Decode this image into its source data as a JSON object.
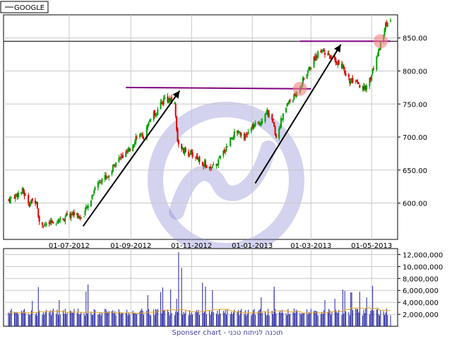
{
  "chart_data": {
    "type": "candlestick",
    "ticker": "GOOGLE",
    "footer": "Sponser chart - תוכנה לניתוח טכני",
    "colors": {
      "up": "#00a000",
      "down": "#e00000",
      "volume": "#2020a0",
      "volume_ma": "#e0a020",
      "trend_line": "#800080",
      "arrow": "#000000",
      "highlight": "#f08080",
      "hline": "#000000",
      "grid": "#c8c8c8",
      "watermark": "#8080d0"
    },
    "price_axis": {
      "ticks": [
        "600.00",
        "650.00",
        "700.00",
        "750.00",
        "800.00",
        "850.00"
      ],
      "tick_values": [
        600,
        650,
        700,
        750,
        800,
        850
      ],
      "range": [
        545,
        885
      ]
    },
    "date_axis": {
      "labels": [
        "01-07-2012",
        "01-09-2012",
        "01-11-2012",
        "01-01-2013",
        "01-03-2013",
        "01-05-2013"
      ],
      "label_dates": [
        "2012-07-01",
        "2012-09-01",
        "2012-11-01",
        "2013-01-01",
        "2013-03-01",
        "2013-05-01"
      ],
      "start": "2012-05-01",
      "end": "2013-05-20"
    },
    "volume_axis": {
      "ticks": [
        "2,000,000",
        "4,000,000",
        "6,000,000",
        "8,000,000",
        "10,000,000",
        "12,000,000"
      ],
      "tick_values": [
        2000000,
        4000000,
        6000000,
        8000000,
        10000000,
        12000000
      ],
      "range": [
        0,
        13000000
      ]
    },
    "close_path": [
      [
        "2012-05-01",
        605
      ],
      [
        "2012-05-08",
        612
      ],
      [
        "2012-05-15",
        618
      ],
      [
        "2012-05-22",
        600
      ],
      [
        "2012-05-29",
        605
      ],
      [
        "2012-06-01",
        572
      ],
      [
        "2012-06-08",
        565
      ],
      [
        "2012-06-15",
        572
      ],
      [
        "2012-06-22",
        575
      ],
      [
        "2012-06-29",
        580
      ],
      [
        "2012-07-06",
        585
      ],
      [
        "2012-07-13",
        577
      ],
      [
        "2012-07-20",
        595
      ],
      [
        "2012-07-27",
        625
      ],
      [
        "2012-08-03",
        638
      ],
      [
        "2012-08-10",
        642
      ],
      [
        "2012-08-17",
        664
      ],
      [
        "2012-08-24",
        670
      ],
      [
        "2012-08-31",
        680
      ],
      [
        "2012-09-07",
        703
      ],
      [
        "2012-09-14",
        700
      ],
      [
        "2012-09-21",
        730
      ],
      [
        "2012-09-28",
        740
      ],
      [
        "2012-10-05",
        760
      ],
      [
        "2012-10-10",
        755
      ],
      [
        "2012-10-15",
        750
      ],
      [
        "2012-10-18",
        695
      ],
      [
        "2012-10-22",
        680
      ],
      [
        "2012-10-30",
        675
      ],
      [
        "2012-11-06",
        670
      ],
      [
        "2012-11-13",
        660
      ],
      [
        "2012-11-20",
        650
      ],
      [
        "2012-11-27",
        660
      ],
      [
        "2012-12-04",
        680
      ],
      [
        "2012-12-11",
        700
      ],
      [
        "2012-12-18",
        710
      ],
      [
        "2012-12-25",
        700
      ],
      [
        "2013-01-01",
        715
      ],
      [
        "2013-01-08",
        720
      ],
      [
        "2013-01-15",
        740
      ],
      [
        "2013-01-22",
        720
      ],
      [
        "2013-01-25",
        700
      ],
      [
        "2013-01-29",
        720
      ],
      [
        "2013-02-05",
        750
      ],
      [
        "2013-02-12",
        760
      ],
      [
        "2013-02-19",
        780
      ],
      [
        "2013-02-26",
        800
      ],
      [
        "2013-03-05",
        820
      ],
      [
        "2013-03-12",
        835
      ],
      [
        "2013-03-19",
        820
      ],
      [
        "2013-03-26",
        815
      ],
      [
        "2013-04-02",
        805
      ],
      [
        "2013-04-09",
        785
      ],
      [
        "2013-04-16",
        780
      ],
      [
        "2013-04-23",
        770
      ],
      [
        "2013-04-30",
        790
      ],
      [
        "2013-05-07",
        825
      ],
      [
        "2013-05-14",
        865
      ],
      [
        "2013-05-20",
        880
      ]
    ],
    "annotations": {
      "horizontal_line": {
        "value": 845
      },
      "trend_lines": [
        {
          "from": [
            "2012-08-27",
            775
          ],
          "to": [
            "2013-03-01",
            773
          ]
        },
        {
          "from": [
            "2013-02-18",
            845
          ],
          "to": [
            "2013-05-20",
            845
          ]
        }
      ],
      "arrows": [
        {
          "from": [
            "2012-07-15",
            565
          ],
          "to": [
            "2012-10-20",
            770
          ]
        },
        {
          "from": [
            "2013-01-04",
            630
          ],
          "to": [
            "2013-03-31",
            840
          ]
        }
      ],
      "highlights": [
        {
          "date": "2013-02-18",
          "value": 773
        },
        {
          "date": "2013-05-10",
          "value": 845
        }
      ]
    }
  }
}
